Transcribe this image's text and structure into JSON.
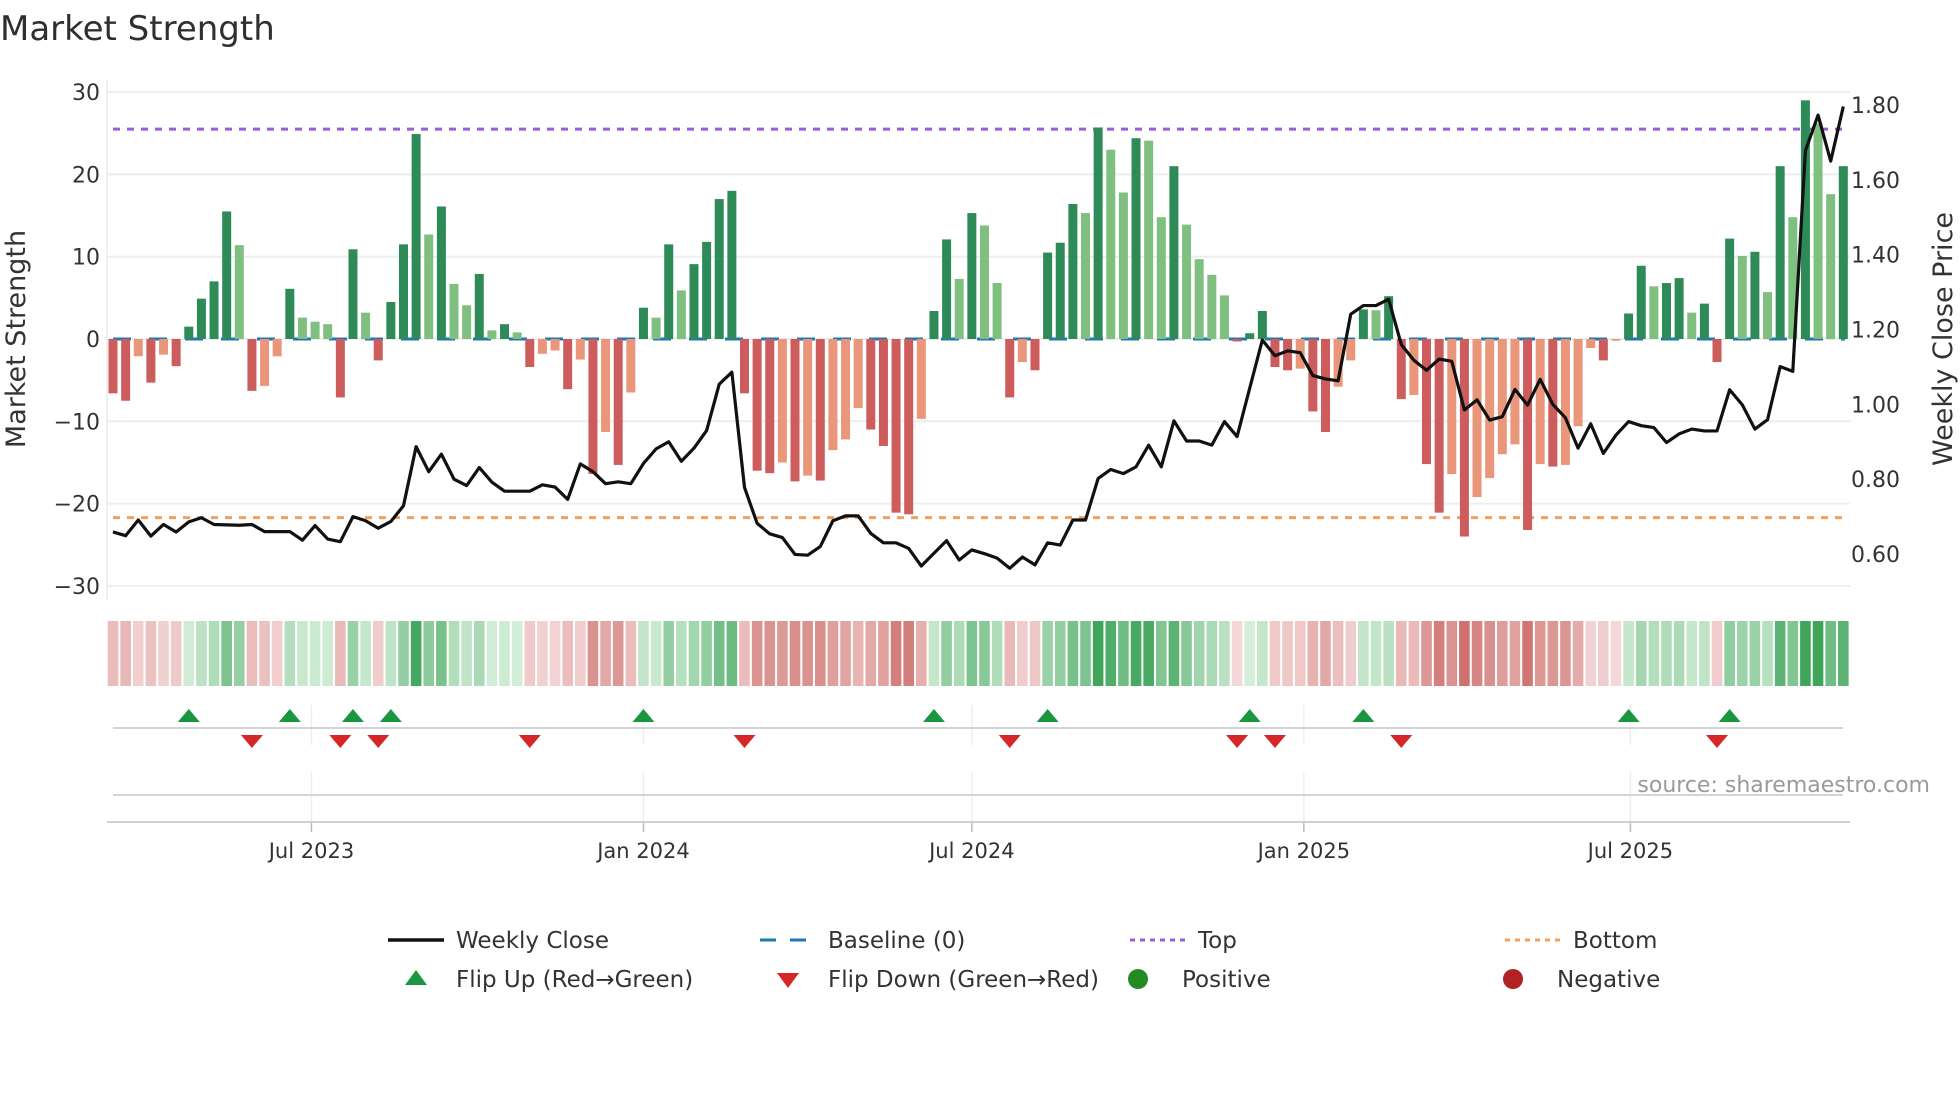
{
  "chart_data": {
    "type": "bar",
    "title": "Market Strength",
    "ylabel": "Market Strength",
    "y2label": "Weekly Close Price",
    "source": "source: sharemaestro.com",
    "x_start": "2023-03-13",
    "x_step_days": 7,
    "ylim": [
      -31.5,
      31.5
    ],
    "y2lim": [
      0.55,
      1.84
    ],
    "yticks": [
      30,
      20,
      10,
      0,
      -10,
      -20,
      -30
    ],
    "ytick_labels": [
      "30",
      "20",
      "10",
      "0",
      "−10",
      "−20",
      "−30"
    ],
    "y2ticks": [
      1.8,
      1.6,
      1.4,
      1.2,
      1.0,
      0.8,
      0.6
    ],
    "y2tick_labels": [
      "1.80",
      "1.60",
      "1.40",
      "1.20",
      "1.00",
      "0.80",
      "0.60"
    ],
    "xticks": [
      "2023-07-01",
      "2024-01-01",
      "2024-07-01",
      "2025-01-01",
      "2025-07-01"
    ],
    "xtick_labels": [
      "Jul 2023",
      "Jan 2024",
      "Jul 2024",
      "Jan 2025",
      "Jul 2025"
    ],
    "top_level": 25.5,
    "bottom_level": -21.7,
    "baseline": 0,
    "colors": {
      "strong_up": "#2e8b57",
      "weak_up": "#7fbf7f",
      "strong_down": "#cd5c5c",
      "weak_down": "#e9967a",
      "baseline": "#1f77b4",
      "top": "#9a5fd6",
      "bottom": "#f0a060",
      "close": "#111111",
      "flip_up": "#1a9641",
      "flip_down": "#d62728",
      "positive": "#228b22",
      "negative": "#b22222"
    },
    "strength": [
      -6.6,
      -7.5,
      -2.1,
      -5.3,
      -1.9,
      -3.3,
      1.5,
      4.9,
      7.0,
      15.5,
      11.4,
      -6.3,
      -5.7,
      -2.1,
      6.1,
      2.6,
      2.1,
      1.8,
      -7.1,
      10.9,
      3.2,
      -2.6,
      4.5,
      11.5,
      24.9,
      12.7,
      16.1,
      6.7,
      4.1,
      7.9,
      1.05,
      1.8,
      0.8,
      -3.4,
      -1.8,
      -1.4,
      -6.1,
      -2.5,
      -16.4,
      -11.3,
      -15.3,
      -6.5,
      3.8,
      2.6,
      11.5,
      5.9,
      9.1,
      11.8,
      17.0,
      18.0,
      -6.6,
      -16.0,
      -16.3,
      -15.0,
      -17.3,
      -16.6,
      -17.2,
      -13.5,
      -12.2,
      -8.4,
      -11.0,
      -13.0,
      -21.1,
      -21.3,
      -9.7,
      3.4,
      12.1,
      7.3,
      15.3,
      13.8,
      6.8,
      -7.1,
      -2.8,
      -3.8,
      10.5,
      11.7,
      16.4,
      15.3,
      25.7,
      23.0,
      17.8,
      24.4,
      24.1,
      14.8,
      21.0,
      13.9,
      9.7,
      7.8,
      5.3,
      -0.3,
      0.7,
      3.4,
      -3.4,
      -3.8,
      -3.6,
      -8.8,
      -11.3,
      -5.8,
      -2.6,
      3.6,
      3.5,
      5.2,
      -7.3,
      -6.8,
      -15.2,
      -21.1,
      -16.4,
      -24.0,
      -19.2,
      -16.9,
      -14.0,
      -12.8,
      -23.2,
      -15.2,
      -15.5,
      -15.3,
      -10.6,
      -1.1,
      -2.6,
      -0.2,
      3.1,
      8.9,
      6.4,
      6.8,
      7.4,
      3.2,
      4.3,
      -2.8,
      12.2,
      10.1,
      10.6,
      5.7,
      21.0,
      14.8,
      29.0,
      26.2,
      17.6,
      21.0
    ],
    "weekly_close": [
      0.659,
      0.649,
      0.691,
      0.648,
      0.679,
      0.659,
      0.686,
      0.697,
      0.679,
      0.678,
      0.677,
      0.679,
      0.66,
      0.66,
      0.66,
      0.637,
      0.676,
      0.64,
      0.633,
      0.7,
      0.689,
      0.669,
      0.687,
      0.729,
      0.887,
      0.82,
      0.867,
      0.8,
      0.783,
      0.831,
      0.792,
      0.768,
      0.768,
      0.768,
      0.785,
      0.779,
      0.746,
      0.841,
      0.82,
      0.788,
      0.793,
      0.788,
      0.842,
      0.881,
      0.9,
      0.848,
      0.883,
      0.93,
      1.054,
      1.086,
      0.778,
      0.682,
      0.654,
      0.644,
      0.599,
      0.597,
      0.62,
      0.689,
      0.702,
      0.702,
      0.655,
      0.63,
      0.63,
      0.615,
      0.568,
      0.602,
      0.636,
      0.584,
      0.611,
      0.601,
      0.589,
      0.562,
      0.592,
      0.571,
      0.63,
      0.624,
      0.691,
      0.691,
      0.802,
      0.826,
      0.815,
      0.833,
      0.891,
      0.833,
      0.956,
      0.902,
      0.902,
      0.891,
      0.954,
      0.914,
      1.043,
      1.172,
      1.13,
      1.143,
      1.138,
      1.077,
      1.068,
      1.063,
      1.241,
      1.264,
      1.264,
      1.281,
      1.16,
      1.118,
      1.091,
      1.121,
      1.115,
      0.985,
      1.012,
      0.958,
      0.967,
      1.04,
      0.998,
      1.067,
      1.0,
      0.964,
      0.883,
      0.948,
      0.869,
      0.918,
      0.954,
      0.943,
      0.938,
      0.898,
      0.921,
      0.934,
      0.929,
      0.929,
      1.039,
      0.999,
      0.934,
      0.959,
      1.101,
      1.088,
      1.678,
      1.773,
      1.65,
      1.796
    ],
    "flip_up_weeks": [
      7,
      15,
      20,
      23,
      43,
      66,
      75,
      91,
      100,
      121,
      129
    ],
    "flip_down_weeks": [
      12,
      19,
      22,
      34,
      51,
      72,
      90,
      93,
      103,
      128
    ],
    "legend": {
      "placement": "bottom",
      "items": [
        {
          "label": "Weekly Close",
          "kind": "line"
        },
        {
          "label": "Baseline (0)",
          "kind": "dash"
        },
        {
          "label": "Top",
          "kind": "dot-top"
        },
        {
          "label": "Bottom",
          "kind": "dot-bottom"
        },
        {
          "label": "Flip Up (Red→Green)",
          "kind": "tri-up"
        },
        {
          "label": "Flip Down (Green→Red)",
          "kind": "tri-down"
        },
        {
          "label": "Positive",
          "kind": "circle-pos"
        },
        {
          "label": "Negative",
          "kind": "circle-neg"
        }
      ]
    }
  }
}
